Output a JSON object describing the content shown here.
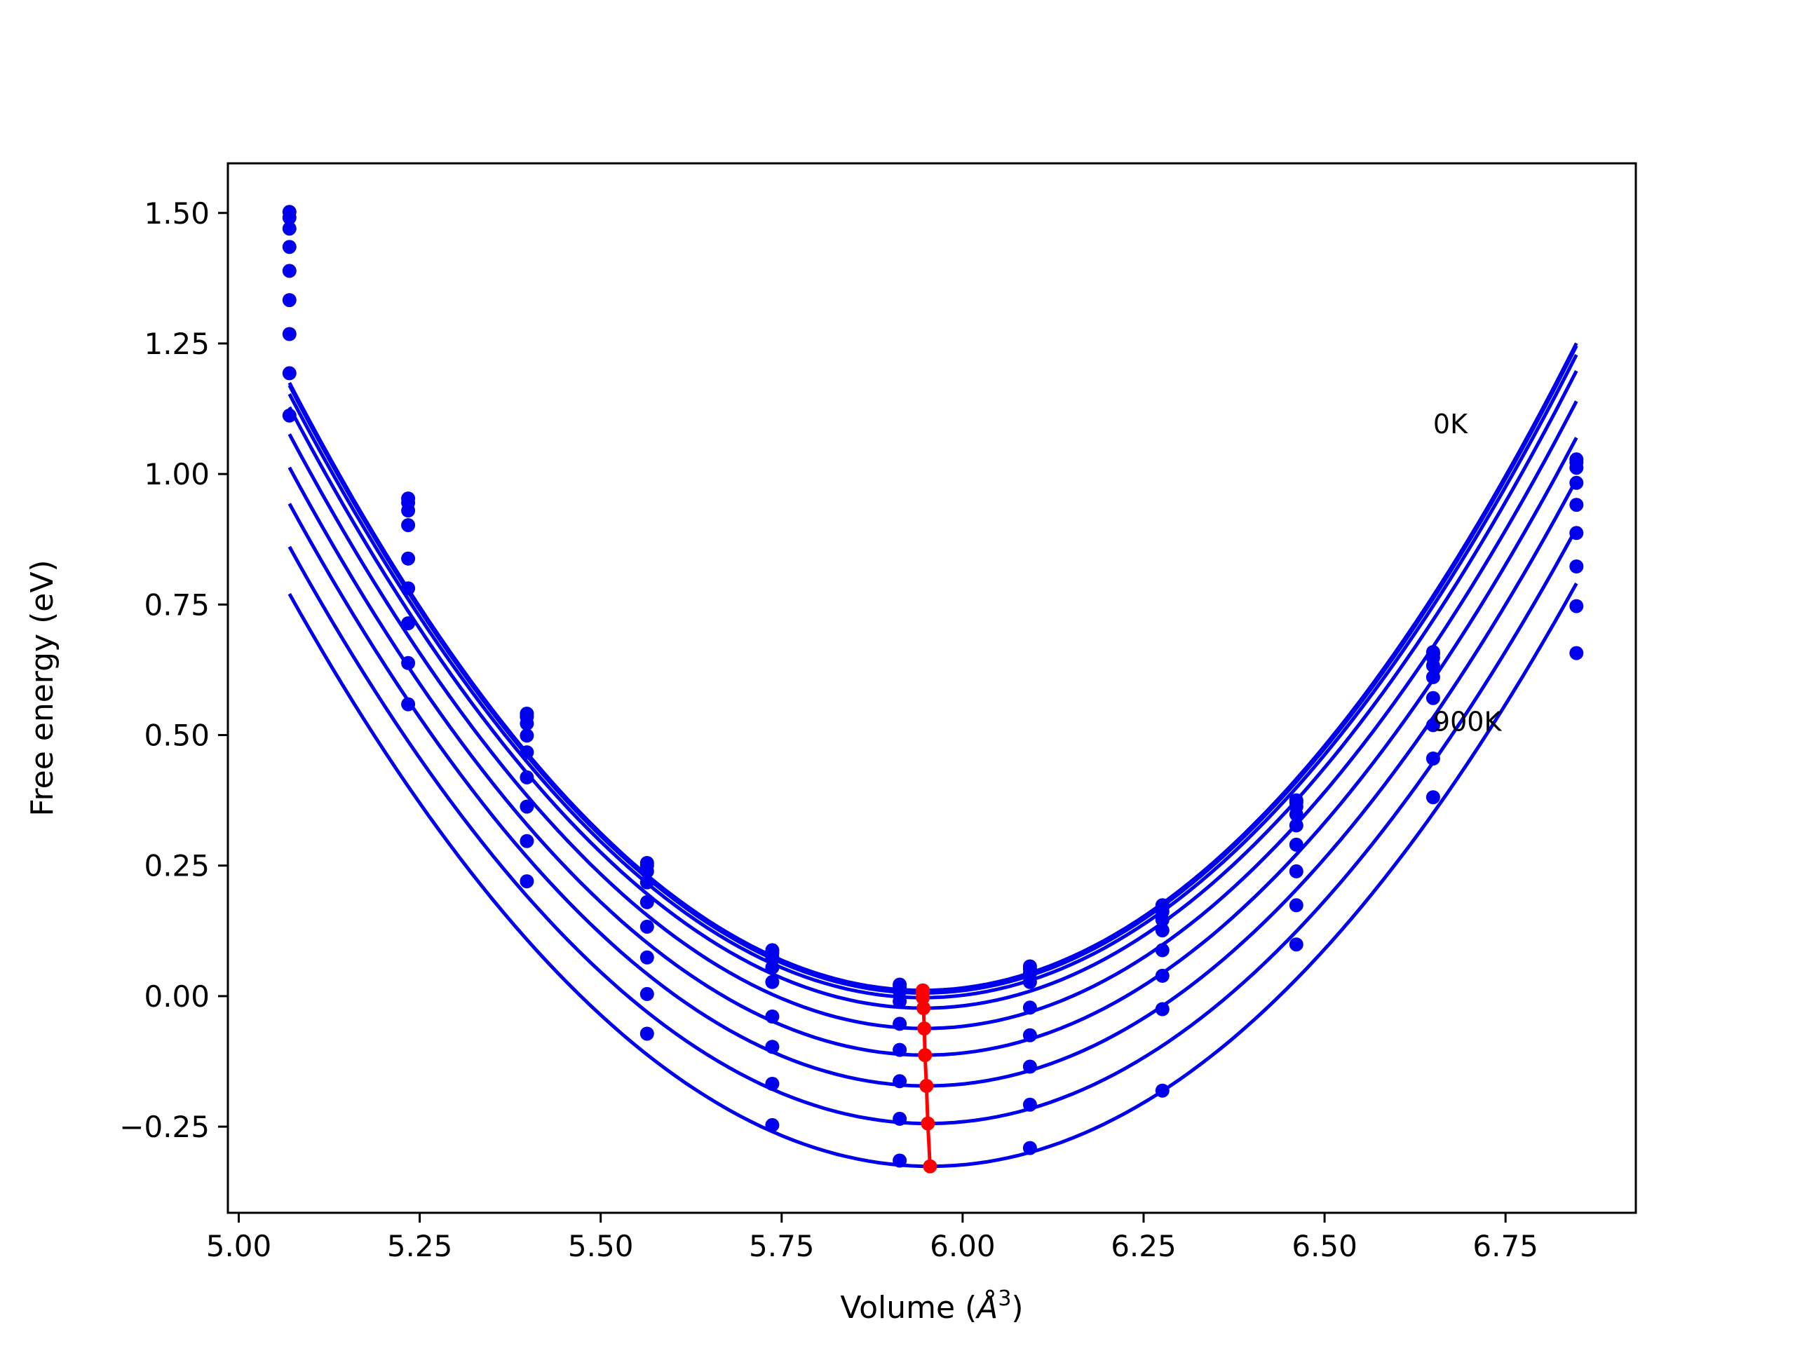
{
  "chart_data": {
    "type": "line",
    "title": "",
    "xlabel_prefix": "Volume (",
    "xlabel_symbol": "Å",
    "xlabel_sup": "3",
    "xlabel_suffix": ")",
    "ylabel": "Free energy (eV)",
    "xlim": [
      4.985,
      6.93
    ],
    "ylim": [
      -0.415,
      1.595
    ],
    "xticks": [
      5.0,
      5.25,
      5.5,
      5.75,
      6.0,
      6.25,
      6.5,
      6.75
    ],
    "xtick_labels": [
      "5.00",
      "5.25",
      "5.50",
      "5.75",
      "6.00",
      "6.25",
      "6.50",
      "6.75"
    ],
    "yticks": [
      -0.25,
      0.0,
      0.25,
      0.5,
      0.75,
      1.0,
      1.25,
      1.5
    ],
    "ytick_labels": [
      "−0.25",
      "0.00",
      "0.25",
      "0.50",
      "0.75",
      "1.00",
      "1.25",
      "1.50"
    ],
    "grid": false,
    "legend": "none",
    "x": [
      5.07,
      5.234,
      5.398,
      5.564,
      5.737,
      5.913,
      6.093,
      6.276,
      6.461,
      6.65,
      6.848
    ],
    "series": [
      {
        "values": [
          1.502,
          0.953,
          0.541,
          0.255,
          0.088,
          0.022,
          0.057,
          0.174,
          0.375,
          0.659,
          1.028
        ]
      },
      {
        "values": [
          1.491,
          0.945,
          0.535,
          0.25,
          0.083,
          0.017,
          0.052,
          0.17,
          0.371,
          0.655,
          1.022
        ]
      },
      {
        "values": [
          1.47,
          0.93,
          0.522,
          0.239,
          0.074,
          0.009,
          0.044,
          0.162,
          0.363,
          0.648,
          1.012
        ]
      },
      {
        "values": [
          1.435,
          0.902,
          0.499,
          0.218,
          0.055,
          -0.01,
          0.027,
          0.146,
          0.348,
          0.633,
          0.983
        ]
      },
      {
        "values": [
          1.389,
          0.838,
          0.467,
          0.18,
          0.027,
          -0.053,
          -0.022,
          0.126,
          0.327,
          0.611,
          0.941
        ]
      },
      {
        "values": [
          1.333,
          0.781,
          0.419,
          0.133,
          -0.039,
          -0.103,
          -0.075,
          0.088,
          0.29,
          0.571,
          0.887
        ]
      },
      {
        "values": [
          1.268,
          0.714,
          0.363,
          0.074,
          -0.097,
          -0.163,
          -0.135,
          0.039,
          0.239,
          0.519,
          0.823
        ]
      },
      {
        "values": [
          1.193,
          0.638,
          0.297,
          0.004,
          -0.168,
          -0.235,
          -0.208,
          -0.025,
          0.174,
          0.455,
          0.747
        ]
      },
      {
        "values": [
          1.112,
          0.559,
          0.22,
          -0.072,
          -0.247,
          -0.315,
          -0.291,
          -0.181,
          0.099,
          0.381,
          0.657
        ]
      }
    ],
    "fit_curves": [
      {
        "a": 1.52,
        "v0": 5.945,
        "e0": 0.011
      },
      {
        "a": 1.52,
        "v0": 5.945,
        "e0": 0.006
      },
      {
        "a": 1.51,
        "v0": 5.945,
        "e0": -0.003
      },
      {
        "a": 1.5,
        "v0": 5.946,
        "e0": -0.023
      },
      {
        "a": 1.48,
        "v0": 5.947,
        "e0": -0.062
      },
      {
        "a": 1.46,
        "v0": 5.948,
        "e0": -0.113
      },
      {
        "a": 1.44,
        "v0": 5.95,
        "e0": -0.172
      },
      {
        "a": 1.42,
        "v0": 5.952,
        "e0": -0.244
      },
      {
        "a": 1.4,
        "v0": 5.955,
        "e0": -0.326
      }
    ],
    "minimum_path": {
      "x": [
        5.945,
        5.945,
        5.945,
        5.946,
        5.947,
        5.948,
        5.95,
        5.952,
        5.955
      ],
      "y": [
        0.011,
        0.006,
        -0.003,
        -0.023,
        -0.062,
        -0.113,
        -0.172,
        -0.244,
        -0.326
      ]
    },
    "annotations": [
      {
        "text": "0K",
        "x": 6.65,
        "y": 1.078
      },
      {
        "text": "900K",
        "x": 6.65,
        "y": 0.508
      }
    ],
    "colors": {
      "curves": "#0000ee",
      "minimum_path": "#ff0000",
      "axes": "#000000"
    }
  }
}
